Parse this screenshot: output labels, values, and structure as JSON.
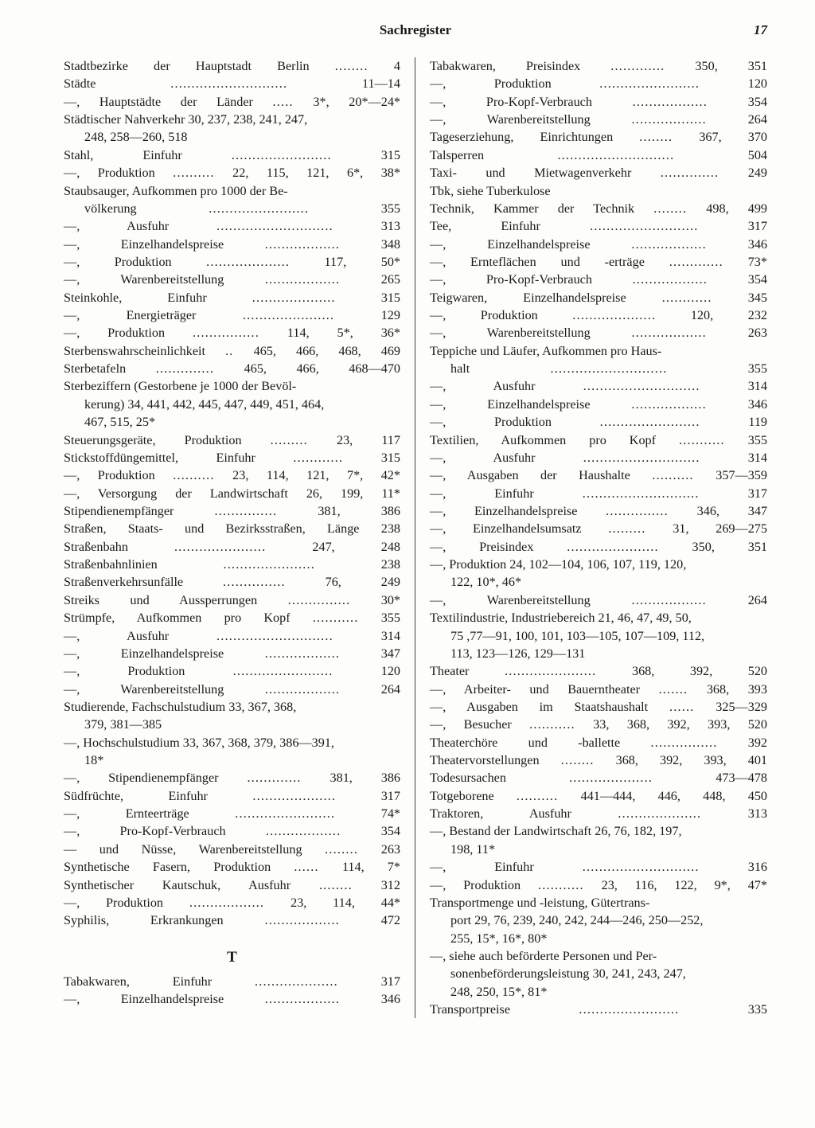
{
  "header": {
    "title": "Sachregister",
    "page_number": "17"
  },
  "section_letter": "T",
  "left": [
    {
      "t": "Stadtbezirke der Hauptstadt Berlin",
      "d": "........",
      "p": "4"
    },
    {
      "t": "Städte",
      "d": "............................",
      "p": "11—14"
    },
    {
      "t": "—, Hauptstädte der Länder",
      "d": ".....",
      "p": "3*, 20*—24*"
    },
    {
      "wrap": true,
      "text": "Städtischer Nahverkehr 30, 237, 238, 241, 247,"
    },
    {
      "cont": true,
      "text": "248, 258—260, 518"
    },
    {
      "t": "Stahl, Einfuhr",
      "d": "........................",
      "p": "315"
    },
    {
      "t": "—, Produktion",
      "d": "..........",
      "p": "22, 115, 121, 6*, 38*"
    },
    {
      "wrap": true,
      "text": "Staubsauger, Aufkommen pro 1000 der Be-"
    },
    {
      "contline": true,
      "t": "völkerung",
      "d": "........................",
      "p": "355"
    },
    {
      "t": "—, Ausfuhr",
      "d": "............................",
      "p": "313"
    },
    {
      "t": "—, Einzelhandelspreise",
      "d": "..................",
      "p": "348"
    },
    {
      "t": "—, Produktion",
      "d": "....................",
      "p": "117, 50*"
    },
    {
      "t": "—, Warenbereitstellung",
      "d": "..................",
      "p": "265"
    },
    {
      "t": "Steinkohle, Einfuhr",
      "d": "....................",
      "p": "315"
    },
    {
      "t": "—, Energieträger",
      "d": "......................",
      "p": "129"
    },
    {
      "t": "—, Produktion",
      "d": "................",
      "p": "114, 5*, 36*"
    },
    {
      "t": "Sterbenswahrscheinlichkeit",
      "d": "..",
      "p": "465, 466, 468, 469"
    },
    {
      "t": "Sterbetafeln",
      "d": "..............",
      "p": "465, 466, 468—470"
    },
    {
      "wrap": true,
      "text": "Sterbeziffern (Gestorbene je 1000 der Bevöl-"
    },
    {
      "cont": true,
      "text": "kerung) 34, 441, 442, 445, 447, 449, 451, 464,"
    },
    {
      "cont": true,
      "text": "467, 515, 25*"
    },
    {
      "t": "Steuerungsgeräte, Produktion",
      "d": ".........",
      "p": "23, 117"
    },
    {
      "t": "Stickstoffdüngemittel, Einfuhr",
      "d": "............",
      "p": "315"
    },
    {
      "t": "—, Produktion",
      "d": "..........",
      "p": "23, 114, 121, 7*, 42*"
    },
    {
      "t": "—, Versorgung der Landwirtschaft",
      "d": "",
      "p": "26, 199, 11*"
    },
    {
      "t": "Stipendienempfänger",
      "d": "...............",
      "p": "381, 386"
    },
    {
      "t": "Straßen, Staats- und Bezirksstraßen, Länge",
      "d": "",
      "p": "238"
    },
    {
      "t": "Straßenbahn",
      "d": "......................",
      "p": "247, 248"
    },
    {
      "t": "Straßenbahnlinien",
      "d": "......................",
      "p": "238"
    },
    {
      "t": "Straßenverkehrsunfälle",
      "d": "...............",
      "p": "76, 249"
    },
    {
      "t": "Streiks und Aussperrungen",
      "d": "...............",
      "p": "30*"
    },
    {
      "t": "Strümpfe, Aufkommen pro Kopf",
      "d": "...........",
      "p": "355"
    },
    {
      "t": "—, Ausfuhr",
      "d": "............................",
      "p": "314"
    },
    {
      "t": "—, Einzelhandelspreise",
      "d": "..................",
      "p": "347"
    },
    {
      "t": "—, Produktion",
      "d": "........................",
      "p": "120"
    },
    {
      "t": "—, Warenbereitstellung",
      "d": "..................",
      "p": "264"
    },
    {
      "wrap": true,
      "text": "Studierende, Fachschulstudium 33, 367, 368,"
    },
    {
      "cont": true,
      "text": "379, 381—385"
    },
    {
      "wrap": true,
      "text": "—, Hochschulstudium 33, 367, 368, 379, 386—391,"
    },
    {
      "cont": true,
      "text": "18*"
    },
    {
      "t": "—, Stipendienempfänger",
      "d": ".............",
      "p": "381, 386"
    },
    {
      "t": "Südfrüchte, Einfuhr",
      "d": "....................",
      "p": "317"
    },
    {
      "t": "—, Ernteerträge",
      "d": "........................",
      "p": "74*"
    },
    {
      "t": "—, Pro-Kopf-Verbrauch",
      "d": "..................",
      "p": "354"
    },
    {
      "t": "— und Nüsse, Warenbereitstellung",
      "d": "........",
      "p": "263"
    },
    {
      "t": "Synthetische Fasern, Produktion",
      "d": "......",
      "p": "114, 7*"
    },
    {
      "t": "Synthetischer Kautschuk, Ausfuhr",
      "d": "........",
      "p": "312"
    },
    {
      "t": "—, Produktion",
      "d": "..................",
      "p": "23, 114, 44*"
    },
    {
      "t": "Syphilis, Erkrankungen",
      "d": "..................",
      "p": "472"
    },
    {
      "letter": true
    },
    {
      "t": "Tabakwaren, Einfuhr",
      "d": "....................",
      "p": "317"
    },
    {
      "t": "—, Einzelhandelspreise",
      "d": "..................",
      "p": "346"
    }
  ],
  "right": [
    {
      "t": "Tabakwaren, Preisindex",
      "d": ".............",
      "p": "350, 351"
    },
    {
      "t": "—, Produktion",
      "d": "........................",
      "p": "120"
    },
    {
      "t": "—, Pro-Kopf-Verbrauch",
      "d": "..................",
      "p": "354"
    },
    {
      "t": "—, Warenbereitstellung",
      "d": "..................",
      "p": "264"
    },
    {
      "t": "Tageserziehung, Einrichtungen",
      "d": "........",
      "p": "367, 370"
    },
    {
      "t": "Talsperren",
      "d": "............................",
      "p": "504"
    },
    {
      "t": "Taxi- und Mietwagenverkehr",
      "d": "..............",
      "p": "249"
    },
    {
      "wrap": true,
      "text": "Tbk, siehe Tuberkulose"
    },
    {
      "t": "Technik, Kammer der Technik",
      "d": "........",
      "p": "498, 499"
    },
    {
      "t": "Tee, Einfuhr",
      "d": "..........................",
      "p": "317"
    },
    {
      "t": "—, Einzelhandelspreise",
      "d": "..................",
      "p": "346"
    },
    {
      "t": "—, Ernteflächen und -erträge",
      "d": ".............",
      "p": "73*"
    },
    {
      "t": "—, Pro-Kopf-Verbrauch",
      "d": "..................",
      "p": "354"
    },
    {
      "t": "Teigwaren, Einzelhandelspreise",
      "d": "............",
      "p": "345"
    },
    {
      "t": "—, Produktion",
      "d": "....................",
      "p": "120, 232"
    },
    {
      "t": "—, Warenbereitstellung",
      "d": "..................",
      "p": "263"
    },
    {
      "wrap": true,
      "text": "Teppiche und Läufer, Aufkommen pro Haus-"
    },
    {
      "contline": true,
      "t": "halt",
      "d": "............................",
      "p": "355"
    },
    {
      "t": "—, Ausfuhr",
      "d": "............................",
      "p": "314"
    },
    {
      "t": "—, Einzelhandelspreise",
      "d": "..................",
      "p": "346"
    },
    {
      "t": "—, Produktion",
      "d": "........................",
      "p": "119"
    },
    {
      "t": "Textilien, Aufkommen pro Kopf",
      "d": "...........",
      "p": "355"
    },
    {
      "t": "—, Ausfuhr",
      "d": "............................",
      "p": "314"
    },
    {
      "t": "—, Ausgaben der Haushalte",
      "d": "..........",
      "p": "357—359"
    },
    {
      "t": "—, Einfuhr",
      "d": "............................",
      "p": "317"
    },
    {
      "t": "—, Einzelhandelspreise",
      "d": "...............",
      "p": "346, 347"
    },
    {
      "t": "—, Einzelhandelsumsatz",
      "d": ".........",
      "p": "31, 269—275"
    },
    {
      "t": "—, Preisindex",
      "d": "......................",
      "p": "350, 351"
    },
    {
      "wrap": true,
      "text": "—, Produktion 24, 102—104, 106, 107, 119, 120,"
    },
    {
      "cont": true,
      "text": "122, 10*, 46*"
    },
    {
      "t": "—, Warenbereitstellung",
      "d": "..................",
      "p": "264"
    },
    {
      "wrap": true,
      "text": "Textilindustrie, Industriebereich 21, 46, 47, 49, 50,"
    },
    {
      "cont": true,
      "text": "75 ,77—91, 100, 101, 103—105, 107—109, 112,"
    },
    {
      "cont": true,
      "text": "113, 123—126, 129—131"
    },
    {
      "t": "Theater",
      "d": "......................",
      "p": "368, 392, 520"
    },
    {
      "t": "—, Arbeiter- und Bauerntheater",
      "d": ".......",
      "p": "368, 393"
    },
    {
      "t": "—, Ausgaben im Staatshaushalt",
      "d": "......",
      "p": "325—329"
    },
    {
      "t": "—, Besucher",
      "d": "...........",
      "p": "33, 368, 392, 393, 520"
    },
    {
      "t": "Theaterchöre und -ballette",
      "d": "................",
      "p": "392"
    },
    {
      "t": "Theatervorstellungen",
      "d": "........",
      "p": "368, 392, 393, 401"
    },
    {
      "t": "Todesursachen",
      "d": "....................",
      "p": "473—478"
    },
    {
      "t": "Totgeborene",
      "d": "..........",
      "p": "441—444, 446, 448, 450"
    },
    {
      "t": "Traktoren, Ausfuhr",
      "d": "....................",
      "p": "313"
    },
    {
      "wrap": true,
      "text": "—, Bestand der Landwirtschaft 26, 76, 182, 197,"
    },
    {
      "cont": true,
      "text": "198, 11*"
    },
    {
      "t": "—, Einfuhr",
      "d": "............................",
      "p": "316"
    },
    {
      "t": "—, Produktion",
      "d": "...........",
      "p": "23, 116, 122, 9*, 47*"
    },
    {
      "wrap": true,
      "text": "Transportmenge und -leistung, Gütertrans-"
    },
    {
      "cont": true,
      "text": "port 29, 76, 239, 240, 242, 244—246, 250—252,"
    },
    {
      "cont": true,
      "text": "255, 15*, 16*, 80*"
    },
    {
      "wrap": true,
      "text": "—, siehe auch beförderte Personen und Per-"
    },
    {
      "cont": true,
      "text": "sonenbeförderungsleistung 30, 241, 243, 247,"
    },
    {
      "cont": true,
      "text": "248, 250, 15*, 81*"
    },
    {
      "t": "Transportpreise",
      "d": "........................",
      "p": "335"
    }
  ]
}
